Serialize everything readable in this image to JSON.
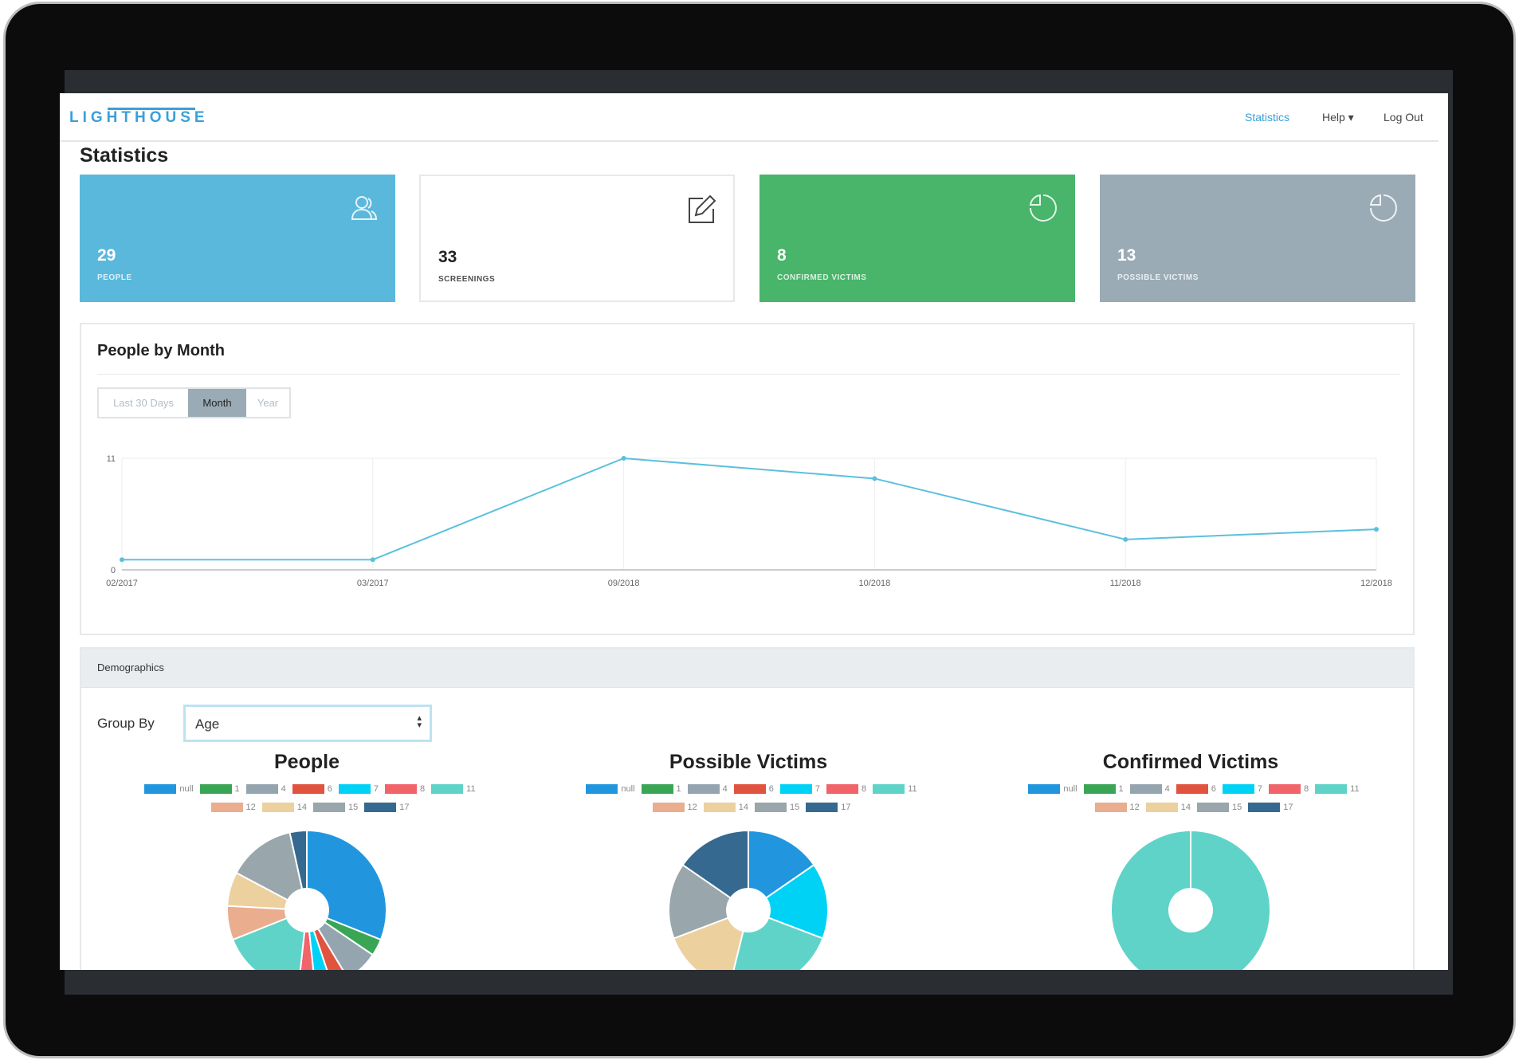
{
  "nav": {
    "logo": "LIGHTHOUSE",
    "links": [
      {
        "label": "Statistics"
      },
      {
        "label": "Help ▾"
      },
      {
        "label": "Log Out"
      }
    ]
  },
  "page_title": "Statistics",
  "cards": [
    {
      "value": "29",
      "label": "PEOPLE",
      "icon": "people-icon",
      "color": "#5ab8dc"
    },
    {
      "value": "33",
      "label": "SCREENINGS",
      "icon": "edit-icon",
      "color": "#ffffff"
    },
    {
      "value": "8",
      "label": "CONFIRMED VICTIMS",
      "icon": "pie-chart-icon",
      "color": "#48b56a"
    },
    {
      "value": "13",
      "label": "POSSIBLE VICTIMS",
      "icon": "pie-chart-icon",
      "color": "#9aabb5"
    }
  ],
  "people_by_month": {
    "title": "People by Month",
    "ranges": [
      "Last 30 Days",
      "Month",
      "Year"
    ],
    "selected": "Month"
  },
  "demographics": {
    "header": "Demographics",
    "group_by_label": "Group By",
    "group_by_value": "Age"
  },
  "chart_data": [
    {
      "type": "line",
      "title": "People by Month",
      "x": [
        "02/2017",
        "03/2017",
        "09/2018",
        "10/2018",
        "11/2018",
        "12/2018"
      ],
      "values": [
        1,
        1,
        11,
        9,
        3,
        4
      ],
      "ylim": [
        0,
        11
      ],
      "yticks": [
        "0",
        "11"
      ],
      "color": "#5bc0de"
    },
    {
      "type": "pie",
      "title": "People",
      "labels": [
        "null",
        "1",
        "4",
        "6",
        "7",
        "8",
        "11",
        "12",
        "14",
        "15",
        "17"
      ],
      "values": [
        9,
        1,
        2,
        1,
        1,
        1,
        5,
        2,
        2,
        4,
        1
      ]
    },
    {
      "type": "pie",
      "title": "Possible Victims",
      "labels": [
        "null",
        "1",
        "4",
        "6",
        "7",
        "8",
        "11",
        "12",
        "14",
        "15",
        "17"
      ],
      "values": [
        2,
        0,
        0,
        0,
        2,
        0,
        3,
        0,
        2,
        2,
        2
      ]
    },
    {
      "type": "pie",
      "title": "Confirmed Victims",
      "labels": [
        "null",
        "1",
        "4",
        "6",
        "7",
        "8",
        "11",
        "12",
        "14",
        "15",
        "17"
      ],
      "values": [
        0,
        0,
        0,
        0,
        0,
        0,
        8,
        0,
        0,
        0,
        0
      ]
    }
  ],
  "pie_colors": [
    "#2196de",
    "#3aa655",
    "#95a5b0",
    "#e0533f",
    "#00d2f5",
    "#f0646a",
    "#5fd3c8",
    "#eaad8e",
    "#ecd09e",
    "#99a6ab",
    "#35698f"
  ]
}
